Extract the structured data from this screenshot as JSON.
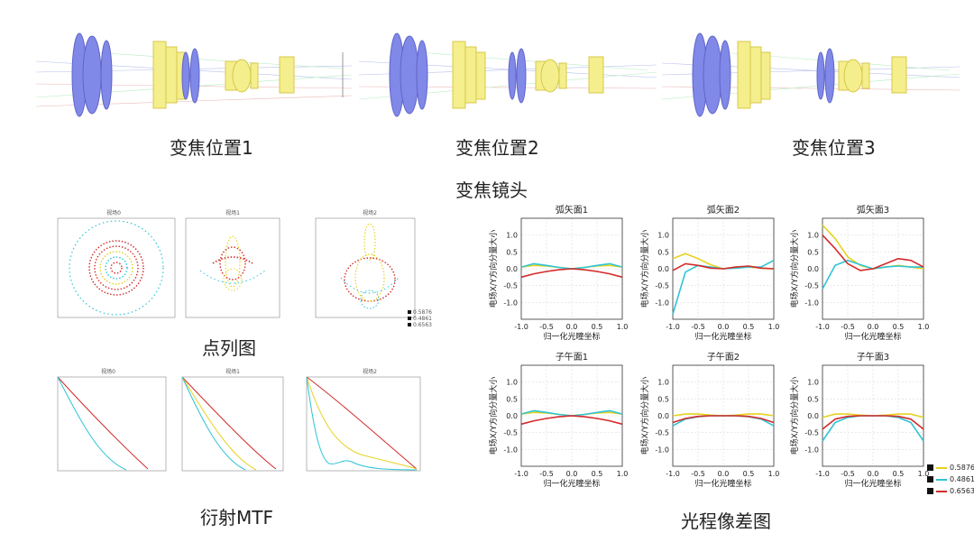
{
  "captions": {
    "zoom1": "变焦位置1",
    "zoom2": "变焦位置2",
    "zoom3": "变焦位置3",
    "zoom_lens": "变焦镜头",
    "spot": "点列图",
    "mtf": "衍射MTF",
    "opd": "光程像差图"
  },
  "spot": {
    "titles": [
      "视场0",
      "视场1",
      "视场2"
    ],
    "legend": [
      "0.5876",
      "0.4861",
      "0.6563"
    ]
  },
  "mtf": {
    "titles": [
      "视场0",
      "视场1",
      "视场2"
    ]
  },
  "colors": {
    "yellow": "#e6d21f",
    "cyan": "#2ec4d6",
    "red": "#d42a2a",
    "lens_blue": "#8088e8",
    "lens_yellow": "#f4ee8c"
  },
  "chart_data": [
    {
      "type": "line",
      "title": "弧矢面1",
      "xlabel": "归一化光瞳坐标",
      "ylabel": "电场X/Y方向分量大小",
      "xlim": [
        -1.0,
        1.0
      ],
      "ylim": [
        -1.5,
        1.5
      ],
      "xticks": [
        "-1.0",
        "-0.5",
        "0.0",
        "0.5",
        "1.0"
      ],
      "yticks": [
        "1.0",
        "0.5",
        "0.0",
        "-0.5",
        "-1.0"
      ],
      "x": [
        -1.0,
        -0.75,
        -0.5,
        -0.25,
        0.0,
        0.25,
        0.5,
        0.75,
        1.0
      ],
      "series": [
        {
          "name": "0.5876",
          "color": "#e6d21f",
          "values": [
            0.05,
            0.1,
            0.08,
            0.04,
            0.0,
            0.04,
            0.08,
            0.1,
            0.05
          ]
        },
        {
          "name": "0.4861",
          "color": "#2ec4d6",
          "values": [
            0.05,
            0.15,
            0.1,
            0.04,
            0.0,
            0.04,
            0.1,
            0.15,
            0.05
          ]
        },
        {
          "name": "0.6563",
          "color": "#d42a2a",
          "values": [
            -0.25,
            -0.15,
            -0.08,
            -0.03,
            0.0,
            -0.03,
            -0.08,
            -0.15,
            -0.25
          ]
        }
      ]
    },
    {
      "type": "line",
      "title": "弧矢面2",
      "xlabel": "归一化光瞳坐标",
      "ylabel": "电场X/Y方向分量大小",
      "xlim": [
        -1.0,
        1.0
      ],
      "ylim": [
        -1.5,
        1.5
      ],
      "xticks": [
        "-1.0",
        "-0.5",
        "0.0",
        "0.5",
        "1.0"
      ],
      "yticks": [
        "1.0",
        "0.5",
        "0.0",
        "-0.5",
        "-1.0"
      ],
      "x": [
        -1.0,
        -0.75,
        -0.5,
        -0.25,
        0.0,
        0.25,
        0.5,
        0.75,
        1.0
      ],
      "series": [
        {
          "name": "0.5876",
          "color": "#e6d21f",
          "values": [
            0.3,
            0.45,
            0.3,
            0.12,
            0.0,
            0.05,
            0.05,
            0.02,
            0.0
          ]
        },
        {
          "name": "0.4861",
          "color": "#2ec4d6",
          "values": [
            -1.35,
            -0.1,
            0.1,
            0.05,
            0.0,
            0.02,
            0.05,
            0.05,
            0.25
          ]
        },
        {
          "name": "0.6563",
          "color": "#d42a2a",
          "values": [
            -0.05,
            0.15,
            0.1,
            0.02,
            0.0,
            0.05,
            0.08,
            0.02,
            0.0
          ]
        }
      ]
    },
    {
      "type": "line",
      "title": "弧矢面3",
      "xlabel": "归一化光瞳坐标",
      "ylabel": "电场X/Y方向分量大小",
      "xlim": [
        -1.0,
        1.0
      ],
      "ylim": [
        -1.5,
        1.5
      ],
      "xticks": [
        "-1.0",
        "-0.5",
        "0.0",
        "0.5",
        "1.0"
      ],
      "yticks": [
        "1.0",
        "0.5",
        "0.0",
        "-0.5",
        "-1.0"
      ],
      "x": [
        -1.0,
        -0.75,
        -0.5,
        -0.25,
        0.0,
        0.25,
        0.5,
        0.75,
        1.0
      ],
      "series": [
        {
          "name": "0.5876",
          "color": "#e6d21f",
          "values": [
            1.3,
            0.9,
            0.35,
            0.1,
            0.0,
            0.05,
            0.1,
            0.05,
            0.0
          ]
        },
        {
          "name": "0.4861",
          "color": "#2ec4d6",
          "values": [
            -0.6,
            0.1,
            0.25,
            0.12,
            0.0,
            0.05,
            0.08,
            0.05,
            0.05
          ]
        },
        {
          "name": "0.6563",
          "color": "#d42a2a",
          "values": [
            1.0,
            0.6,
            0.15,
            -0.05,
            0.0,
            0.15,
            0.3,
            0.25,
            0.05
          ]
        }
      ]
    },
    {
      "type": "line",
      "title": "子午面1",
      "xlabel": "归一化光瞳坐标",
      "ylabel": "电场X/Y方向分量大小",
      "xlim": [
        -1.0,
        1.0
      ],
      "ylim": [
        -1.5,
        1.5
      ],
      "xticks": [
        "-1.0",
        "-0.5",
        "0.0",
        "0.5",
        "1.0"
      ],
      "yticks": [
        "1.0",
        "0.5",
        "0.0",
        "-0.5",
        "-1.0"
      ],
      "x": [
        -1.0,
        -0.75,
        -0.5,
        -0.25,
        0.0,
        0.25,
        0.5,
        0.75,
        1.0
      ],
      "series": [
        {
          "name": "0.5876",
          "color": "#e6d21f",
          "values": [
            0.05,
            0.1,
            0.08,
            0.04,
            0.0,
            0.04,
            0.08,
            0.1,
            0.05
          ]
        },
        {
          "name": "0.4861",
          "color": "#2ec4d6",
          "values": [
            0.05,
            0.15,
            0.1,
            0.04,
            0.0,
            0.04,
            0.1,
            0.15,
            0.05
          ]
        },
        {
          "name": "0.6563",
          "color": "#d42a2a",
          "values": [
            -0.25,
            -0.15,
            -0.08,
            -0.03,
            0.0,
            -0.03,
            -0.08,
            -0.15,
            -0.25
          ]
        }
      ]
    },
    {
      "type": "line",
      "title": "子午面2",
      "xlabel": "归一化光瞳坐标",
      "ylabel": "电场X/Y方向分量大小",
      "xlim": [
        -1.0,
        1.0
      ],
      "ylim": [
        -1.5,
        1.5
      ],
      "xticks": [
        "-1.0",
        "-0.5",
        "0.0",
        "0.5",
        "1.0"
      ],
      "yticks": [
        "1.0",
        "0.5",
        "0.0",
        "-0.5",
        "-1.0"
      ],
      "x": [
        -1.0,
        -0.75,
        -0.5,
        -0.25,
        0.0,
        0.25,
        0.5,
        0.75,
        1.0
      ],
      "series": [
        {
          "name": "0.5876",
          "color": "#e6d21f",
          "values": [
            0.0,
            0.05,
            0.05,
            0.02,
            0.0,
            0.02,
            0.05,
            0.05,
            0.0
          ]
        },
        {
          "name": "0.4861",
          "color": "#2ec4d6",
          "values": [
            -0.3,
            -0.1,
            -0.03,
            0.0,
            0.0,
            0.0,
            -0.03,
            -0.1,
            -0.3
          ]
        },
        {
          "name": "0.6563",
          "color": "#d42a2a",
          "values": [
            -0.2,
            -0.08,
            -0.02,
            0.0,
            0.0,
            0.0,
            -0.02,
            -0.08,
            -0.2
          ]
        }
      ]
    },
    {
      "type": "line",
      "title": "子午面3",
      "xlabel": "归一化光瞳坐标",
      "ylabel": "电场X/Y方向分量大小",
      "xlim": [
        -1.0,
        1.0
      ],
      "ylim": [
        -1.5,
        1.5
      ],
      "xticks": [
        "-1.0",
        "-0.5",
        "0.0",
        "0.5",
        "1.0"
      ],
      "yticks": [
        "1.0",
        "0.5",
        "0.0",
        "-0.5",
        "-1.0"
      ],
      "x": [
        -1.0,
        -0.75,
        -0.5,
        -0.25,
        0.0,
        0.25,
        0.5,
        0.75,
        1.0
      ],
      "series": [
        {
          "name": "0.5876",
          "color": "#e6d21f",
          "values": [
            -0.05,
            0.05,
            0.05,
            0.02,
            0.0,
            0.02,
            0.05,
            0.05,
            -0.05
          ]
        },
        {
          "name": "0.4861",
          "color": "#2ec4d6",
          "values": [
            -0.75,
            -0.2,
            -0.05,
            0.0,
            0.0,
            0.0,
            -0.05,
            -0.2,
            -0.75
          ]
        },
        {
          "name": "0.6563",
          "color": "#d42a2a",
          "values": [
            -0.4,
            -0.1,
            -0.02,
            0.0,
            0.0,
            0.0,
            -0.02,
            -0.1,
            -0.4
          ]
        }
      ]
    }
  ],
  "opd_legend": [
    {
      "label": "0.5876",
      "color": "#e6d21f"
    },
    {
      "label": "0.4861",
      "color": "#2ec4d6"
    },
    {
      "label": "0.6563",
      "color": "#d42a2a"
    }
  ]
}
